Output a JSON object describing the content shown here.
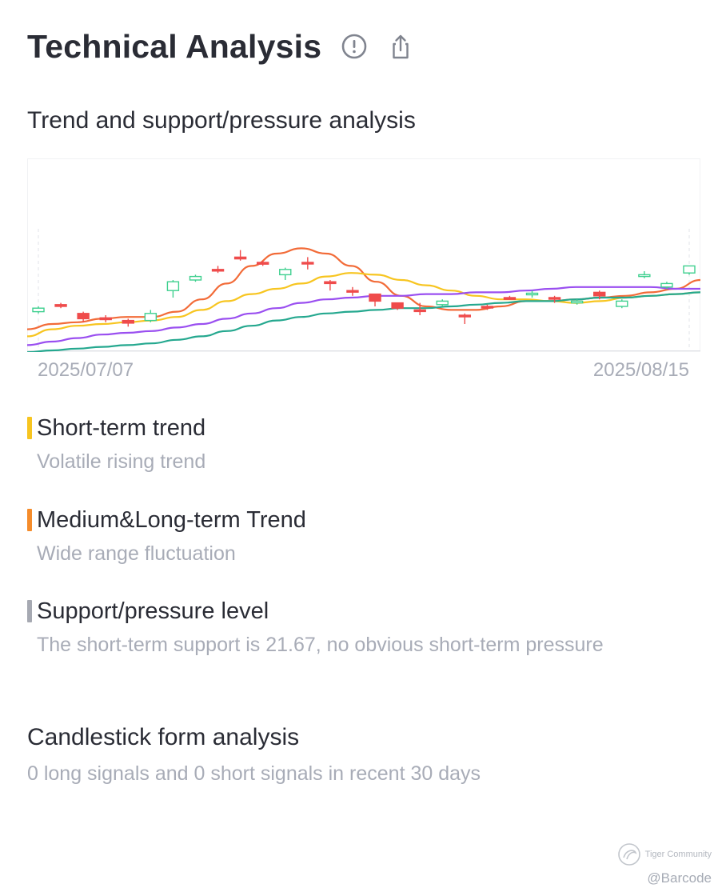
{
  "header": {
    "title": "Technical Analysis",
    "info_icon": "info-circle-icon",
    "share_icon": "share-icon"
  },
  "trend_section": {
    "title": "Trend and support/pressure analysis"
  },
  "chart_data": {
    "type": "candlestick",
    "title": "",
    "x_start_label": "2025/07/07",
    "x_end_label": "2025/08/15",
    "y_range": [
      0,
      100
    ],
    "grid": false,
    "up_color": "#3fd08f",
    "down_color": "#ef4b4b",
    "candles": [
      {
        "open": 22,
        "close": 24,
        "high": 25,
        "low": 21
      },
      {
        "open": 26,
        "close": 25,
        "high": 27,
        "low": 24
      },
      {
        "open": 21,
        "close": 18,
        "high": 22,
        "low": 16
      },
      {
        "open": 18.5,
        "close": 17.5,
        "high": 20,
        "low": 16
      },
      {
        "open": 17,
        "close": 15.5,
        "high": 18,
        "low": 13.5
      },
      {
        "open": 17,
        "close": 21,
        "high": 23,
        "low": 16
      },
      {
        "open": 34,
        "close": 39,
        "high": 40,
        "low": 30
      },
      {
        "open": 40,
        "close": 42,
        "high": 43,
        "low": 39
      },
      {
        "open": 46,
        "close": 45.5,
        "high": 48,
        "low": 44
      },
      {
        "open": 53,
        "close": 52,
        "high": 57,
        "low": 51
      },
      {
        "open": 50,
        "close": 49,
        "high": 51,
        "low": 48
      },
      {
        "open": 43,
        "close": 46,
        "high": 47,
        "low": 40
      },
      {
        "open": 50,
        "close": 49.6,
        "high": 53,
        "low": 46
      },
      {
        "open": 39,
        "close": 38,
        "high": 40,
        "low": 34
      },
      {
        "open": 34,
        "close": 33.6,
        "high": 36,
        "low": 31
      },
      {
        "open": 32,
        "close": 28,
        "high": 32,
        "low": 25
      },
      {
        "open": 27,
        "close": 24,
        "high": 27,
        "low": 23
      },
      {
        "open": 23,
        "close": 22.5,
        "high": 27,
        "low": 20
      },
      {
        "open": 26,
        "close": 28,
        "high": 29,
        "low": 25
      },
      {
        "open": 20,
        "close": 19.6,
        "high": 21,
        "low": 15
      },
      {
        "open": 25,
        "close": 24.6,
        "high": 26,
        "low": 23
      },
      {
        "open": 30,
        "close": 29,
        "high": 31,
        "low": 29
      },
      {
        "open": 32,
        "close": 32.5,
        "high": 34,
        "low": 30
      },
      {
        "open": 30,
        "close": 29.6,
        "high": 31,
        "low": 27
      },
      {
        "open": 27,
        "close": 28,
        "high": 29,
        "low": 26
      },
      {
        "open": 33,
        "close": 31,
        "high": 34,
        "low": 29
      },
      {
        "open": 25,
        "close": 28,
        "high": 29,
        "low": 24
      },
      {
        "open": 42,
        "close": 43,
        "high": 45,
        "low": 41
      },
      {
        "open": 36,
        "close": 38,
        "high": 39,
        "low": 35
      },
      {
        "open": 44,
        "close": 48,
        "high": 48,
        "low": 43
      }
    ],
    "series": [
      {
        "color": "#f26b38",
        "values": [
          12,
          15,
          16,
          18,
          19,
          19,
          22,
          29,
          38,
          48,
          55,
          58,
          55,
          48,
          39,
          31,
          25,
          23,
          23,
          25,
          28,
          28,
          29,
          30,
          31,
          33,
          35,
          40
        ]
      },
      {
        "color": "#f7c520",
        "values": [
          8,
          12,
          14,
          15,
          16,
          17,
          19,
          23,
          28,
          32,
          35,
          38,
          42,
          44,
          43,
          40,
          37,
          34,
          31,
          29,
          29,
          28,
          27,
          28,
          30,
          31,
          32,
          33
        ]
      },
      {
        "color": "#9a4ff0",
        "values": [
          3,
          5,
          7,
          9,
          10,
          11,
          13,
          15,
          18,
          21,
          24,
          27,
          29,
          30,
          31,
          31,
          32,
          32,
          33,
          33,
          34,
          35,
          36,
          36,
          36,
          36,
          35,
          35
        ]
      },
      {
        "color": "#25a88f",
        "values": [
          -1,
          0,
          1,
          2,
          3,
          4,
          6,
          8,
          11,
          14,
          17,
          19,
          21,
          22,
          23,
          24,
          24,
          25,
          26,
          27,
          28,
          28,
          29,
          30,
          30,
          31,
          32,
          33
        ]
      }
    ]
  },
  "trends": [
    {
      "label": "Short-term trend",
      "desc": "Volatile rising trend",
      "color": "#f7c520"
    },
    {
      "label": "Medium&Long-term Trend",
      "desc": "Wide range fluctuation",
      "color": "#f58c2b"
    },
    {
      "label": "Support/pressure level",
      "desc": "The short-term support is 21.67, no obvious short-term pressure",
      "color": "#a6a9b2"
    }
  ],
  "candlestick_section": {
    "title": "Candlestick form analysis",
    "desc": "0 long signals and 0 short signals in recent 30 days"
  },
  "watermark": {
    "brand": "Tiger Community",
    "user": "@Barcode"
  }
}
